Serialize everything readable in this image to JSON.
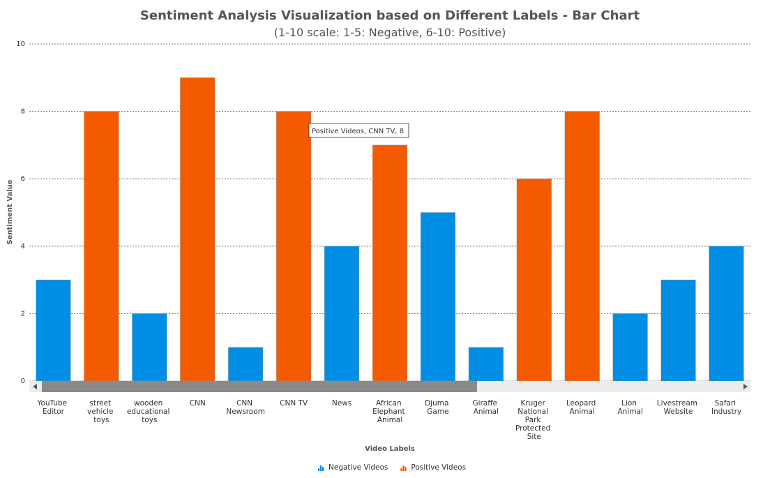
{
  "chart_data": {
    "type": "bar",
    "stacked": true,
    "title": "Sentiment Analysis Visualization based on Different Labels - Bar Chart",
    "subtitle": "(1-10 scale: 1-5: Negative, 6-10: Positive)",
    "x_label": "Video Labels",
    "y_label": "Sentiment Value",
    "categories": [
      "YouTube Editor",
      "street vehicle toys",
      "wooden educational toys",
      "CNN",
      "CNN Newsroom",
      "CNN TV",
      "News",
      "African Elephant Animal",
      "Djuma Game",
      "Giraffe Animal",
      "Kruger National Park Protected Site",
      "Leopard Animal",
      "Lion Animal",
      "Livestream Website",
      "Safari Industry"
    ],
    "series": [
      {
        "name": "Negative Videos",
        "color": "#008ee4",
        "values": [
          3,
          null,
          2,
          null,
          1,
          null,
          4,
          null,
          5,
          1,
          null,
          null,
          2,
          3,
          4
        ]
      },
      {
        "name": "Positive Videos",
        "color": "#f45b00",
        "values": [
          null,
          8,
          null,
          9,
          null,
          8,
          null,
          7,
          null,
          null,
          6,
          8,
          null,
          null,
          null
        ]
      }
    ],
    "ylim": [
      0,
      10
    ],
    "yticks": [
      0,
      2,
      4,
      6,
      8,
      10
    ],
    "grid": true,
    "tooltip": "Positive Videos, CNN TV, 8"
  }
}
